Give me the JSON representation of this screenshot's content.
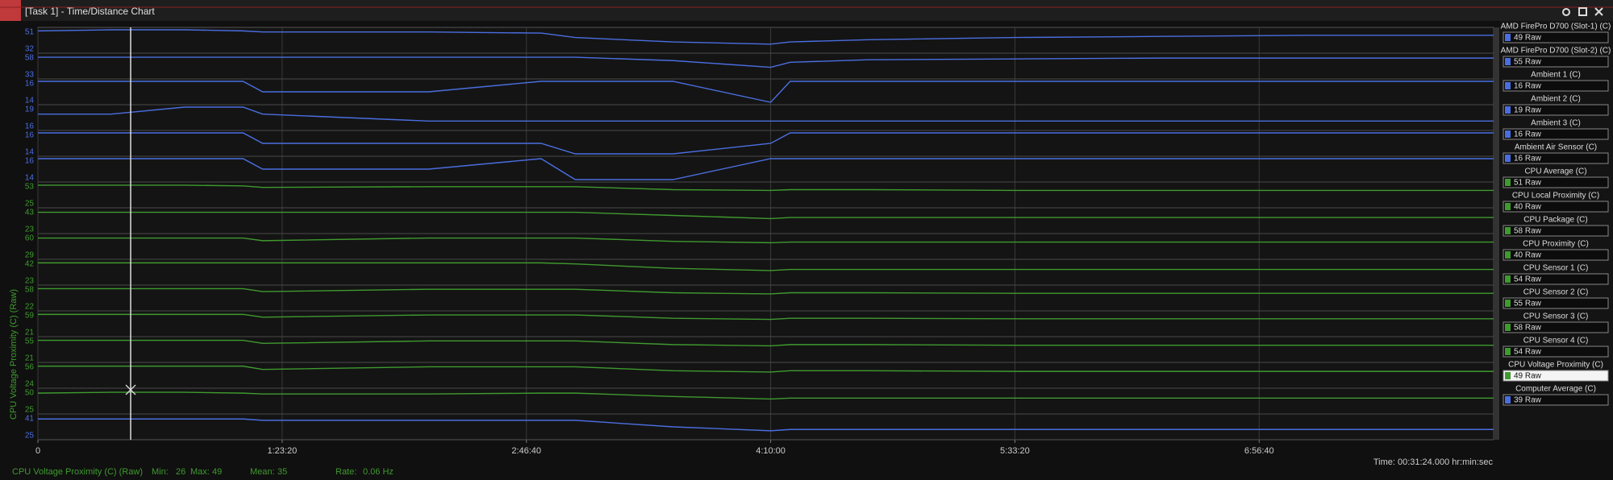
{
  "window": {
    "title": "[Task 1] - Time/Distance Chart"
  },
  "chart_data": {
    "type": "line",
    "y_label": "CPU Voltage Proximity (C) (Raw)",
    "x": [
      0,
      1500,
      3000,
      4200,
      4600,
      8000,
      10300,
      11000,
      13000,
      15000,
      15400,
      17000,
      20000,
      23000,
      26000,
      29800
    ],
    "xlim": [
      0,
      29800
    ],
    "xticks": [
      0,
      {
        "value": 5000,
        "label": "1:23:20"
      },
      {
        "value": 10000,
        "label": "2:46:40"
      },
      {
        "value": 15000,
        "label": "4:10:00"
      },
      {
        "value": 20000,
        "label": "5:33:20"
      },
      {
        "value": 25000,
        "label": "6:56:40"
      }
    ],
    "grid": true,
    "series": [
      {
        "name": "AMD FirePro D700 (Slot-1) (C)",
        "reading": "49 Raw",
        "color": "#4a6ee0",
        "ylim": [
          32,
          51
        ],
        "values": [
          50,
          51,
          51,
          50,
          49,
          49,
          48,
          44,
          40,
          38,
          40,
          42,
          44,
          45,
          46,
          46
        ]
      },
      {
        "name": "AMD FirePro D700 (Slot-2) (C)",
        "reading": "55 Raw",
        "color": "#4a6ee0",
        "ylim": [
          33,
          58
        ],
        "values": [
          56,
          56,
          56,
          56,
          56,
          56,
          56,
          56,
          52,
          44,
          50,
          53,
          54,
          55,
          55,
          55
        ]
      },
      {
        "name": "Ambient 1 (C)",
        "reading": "16 Raw",
        "color": "#4a6ee0",
        "ylim": [
          14,
          16
        ],
        "values": [
          16,
          16,
          16,
          16,
          15,
          15,
          16,
          16,
          16,
          14,
          16,
          16,
          16,
          16,
          16,
          16
        ]
      },
      {
        "name": "Ambient 2 (C)",
        "reading": "19 Raw",
        "color": "#4a6ee0",
        "ylim": [
          16,
          19
        ],
        "values": [
          18,
          18,
          19,
          19,
          18,
          17,
          17,
          17,
          17,
          17,
          17,
          17,
          17,
          17,
          17,
          17
        ]
      },
      {
        "name": "Ambient 3 (C)",
        "reading": "16 Raw",
        "color": "#4a6ee0",
        "ylim": [
          14,
          16
        ],
        "values": [
          16,
          16,
          16,
          16,
          15,
          15,
          15,
          14,
          14,
          15,
          16,
          16,
          16,
          16,
          16,
          16
        ]
      },
      {
        "name": "Ambient Air Sensor (C)",
        "reading": "16 Raw",
        "color": "#4a6ee0",
        "ylim": [
          14,
          16
        ],
        "values": [
          16,
          16,
          16,
          16,
          15,
          15,
          16,
          14,
          14,
          16,
          16,
          16,
          16,
          16,
          16,
          16
        ]
      },
      {
        "name": "CPU Average (C)",
        "reading": "51 Raw",
        "color": "#3f9a2f",
        "ylim": [
          25,
          53
        ],
        "values": [
          52,
          52,
          52,
          51,
          49,
          50,
          50,
          50,
          46,
          45,
          46,
          46,
          45,
          45,
          45,
          45
        ]
      },
      {
        "name": "CPU Local Proximity (C)",
        "reading": "40 Raw",
        "color": "#3f9a2f",
        "ylim": [
          23,
          43
        ],
        "values": [
          41,
          41,
          41,
          41,
          41,
          41,
          41,
          41,
          38,
          35,
          36,
          36,
          36,
          36,
          36,
          36
        ]
      },
      {
        "name": "CPU Package (C)",
        "reading": "58 Raw",
        "color": "#3f9a2f",
        "ylim": [
          29,
          60
        ],
        "values": [
          57,
          57,
          57,
          57,
          53,
          57,
          57,
          57,
          52,
          50,
          51,
          51,
          51,
          51,
          51,
          51
        ]
      },
      {
        "name": "CPU Proximity (C)",
        "reading": "40 Raw",
        "color": "#3f9a2f",
        "ylim": [
          23,
          42
        ],
        "values": [
          41,
          41,
          41,
          41,
          41,
          41,
          41,
          40,
          36,
          34,
          35,
          35,
          35,
          35,
          35,
          35
        ]
      },
      {
        "name": "CPU Sensor 1 (C)",
        "reading": "54 Raw",
        "color": "#3f9a2f",
        "ylim": [
          22,
          58
        ],
        "values": [
          56,
          56,
          56,
          56,
          51,
          55,
          55,
          55,
          49,
          47,
          49,
          49,
          48,
          48,
          48,
          48
        ]
      },
      {
        "name": "CPU Sensor 2 (C)",
        "reading": "55 Raw",
        "color": "#3f9a2f",
        "ylim": [
          21,
          59
        ],
        "values": [
          57,
          57,
          57,
          57,
          52,
          56,
          56,
          56,
          50,
          48,
          50,
          50,
          49,
          49,
          49,
          49
        ]
      },
      {
        "name": "CPU Sensor 3 (C)",
        "reading": "58 Raw",
        "color": "#3f9a2f",
        "ylim": [
          21,
          55
        ],
        "values": [
          53,
          53,
          53,
          53,
          48,
          52,
          52,
          52,
          46,
          44,
          46,
          46,
          45,
          45,
          45,
          45
        ]
      },
      {
        "name": "CPU Sensor 4 (C)",
        "reading": "54 Raw",
        "color": "#3f9a2f",
        "ylim": [
          24,
          56
        ],
        "values": [
          54,
          54,
          54,
          54,
          49,
          53,
          53,
          53,
          47,
          45,
          47,
          47,
          46,
          46,
          46,
          46
        ]
      },
      {
        "name": "CPU Voltage Proximity (C)",
        "reading": "49 Raw",
        "color": "#3f9a2f",
        "ylim": [
          25,
          50
        ],
        "values": [
          47,
          48,
          48,
          47,
          46,
          46,
          47,
          47,
          43,
          40,
          41,
          41,
          41,
          41,
          41,
          41
        ]
      },
      {
        "name": "Computer Average (C)",
        "reading": "39 Raw",
        "color": "#4a6ee0",
        "ylim": [
          25,
          41
        ],
        "values": [
          39,
          39,
          39,
          39,
          38,
          38,
          38,
          38,
          33,
          30,
          31,
          31,
          31,
          31,
          31,
          31
        ]
      }
    ]
  },
  "status": {
    "series": "CPU Voltage Proximity (C) (Raw)",
    "min_label": "Min:",
    "min": 26,
    "max_label": "Max:",
    "max": 49,
    "mean_label": "Mean:",
    "mean": 35,
    "rate_label": "Rate:",
    "rate": "0.06 Hz",
    "time": "Time: 00:31:24.000 hr:min:sec"
  }
}
